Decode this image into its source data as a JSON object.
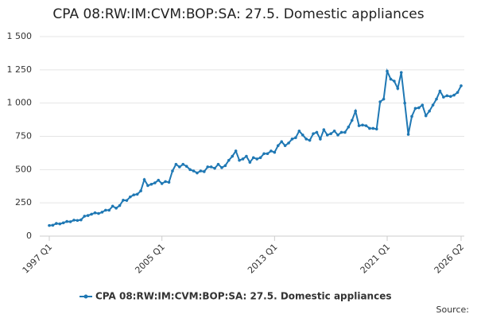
{
  "chart_data": {
    "type": "line",
    "title": "CPA 08:RW:IM:CVM:BOP:SA: 27.5. Domestic appliances",
    "source": "Source:",
    "categories": [
      "1997 Q1",
      null,
      null,
      null,
      null,
      null,
      null,
      null,
      null,
      null,
      null,
      null,
      null,
      null,
      null,
      null,
      null,
      null,
      null,
      null,
      null,
      null,
      null,
      null,
      null,
      null,
      null,
      null,
      null,
      null,
      null,
      null,
      "2005 Q1",
      null,
      null,
      null,
      null,
      null,
      null,
      null,
      null,
      null,
      null,
      null,
      null,
      null,
      null,
      null,
      null,
      null,
      null,
      null,
      null,
      null,
      null,
      null,
      null,
      null,
      null,
      null,
      null,
      null,
      null,
      null,
      "2013 Q1",
      null,
      null,
      null,
      null,
      null,
      null,
      null,
      null,
      null,
      null,
      null,
      null,
      null,
      null,
      null,
      null,
      null,
      null,
      null,
      null,
      null,
      null,
      null,
      null,
      null,
      null,
      null,
      null,
      null,
      null,
      null,
      "2021 Q1",
      null,
      null,
      null,
      null,
      null,
      null,
      null,
      null,
      null,
      null,
      null,
      null,
      null,
      null,
      null,
      null,
      null,
      null,
      null,
      null,
      "2026 Q2"
    ],
    "series": [
      {
        "name": "CPA 08:RW:IM:CVM:BOP:SA: 27.5. Domestic appliances",
        "color": "#1f78b4",
        "values": [
          80,
          82,
          95,
          92,
          100,
          110,
          108,
          120,
          118,
          122,
          150,
          155,
          165,
          175,
          170,
          180,
          195,
          195,
          225,
          210,
          230,
          270,
          268,
          295,
          310,
          315,
          340,
          425,
          380,
          390,
          400,
          420,
          395,
          410,
          405,
          490,
          540,
          520,
          540,
          525,
          500,
          490,
          475,
          490,
          485,
          520,
          520,
          510,
          540,
          515,
          530,
          570,
          600,
          640,
          570,
          580,
          600,
          555,
          590,
          580,
          590,
          620,
          620,
          640,
          630,
          680,
          710,
          680,
          700,
          730,
          740,
          790,
          760,
          730,
          720,
          770,
          780,
          730,
          800,
          760,
          770,
          790,
          760,
          780,
          780,
          820,
          870,
          940,
          830,
          835,
          830,
          810,
          810,
          805,
          1010,
          1030,
          1240,
          1180,
          1165,
          1110,
          1230,
          1000,
          765,
          900,
          960,
          965,
          985,
          905,
          940,
          985,
          1030,
          1090,
          1045,
          1055,
          1050,
          1060,
          1080,
          1130
        ]
      }
    ],
    "ylim": [
      0,
      1500
    ],
    "yticks": [
      0,
      250,
      500,
      750,
      {
        "value": 1000,
        "label": "1 000"
      },
      {
        "value": 1250,
        "label": "1 250"
      },
      {
        "value": 1500,
        "label": "1 500"
      }
    ],
    "grid": true
  }
}
